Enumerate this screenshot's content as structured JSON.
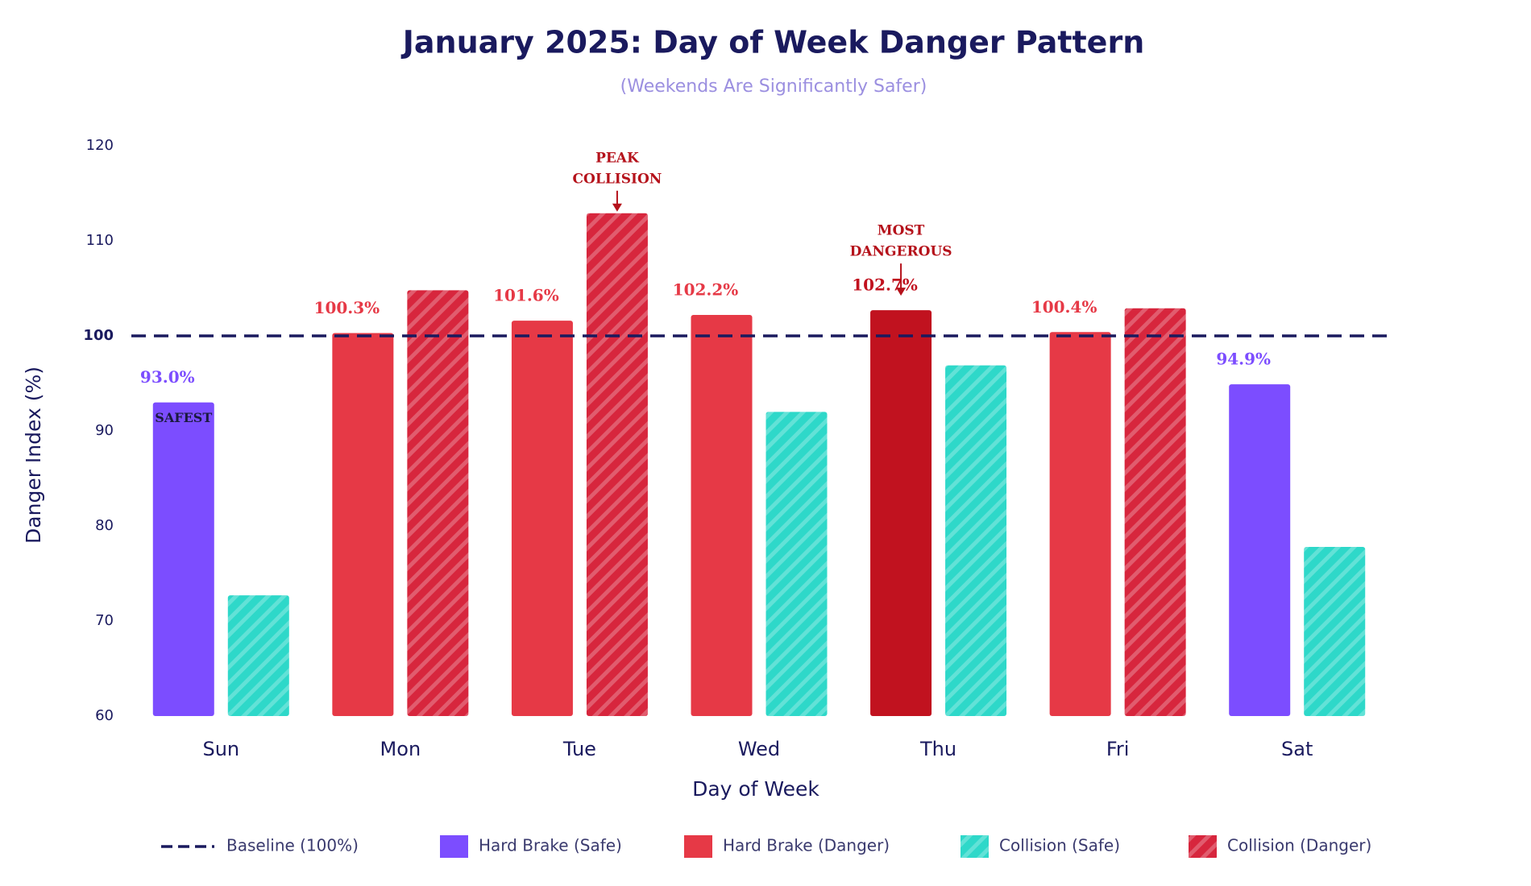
{
  "chart_data": {
    "type": "bar",
    "title": "January 2025: Day of Week Danger Pattern",
    "subtitle": "(Weekends Are Significantly Safer)",
    "x_label": "Day of Week",
    "y_label": "Danger Index (%)",
    "categories": [
      "Sun",
      "Mon",
      "Tue",
      "Wed",
      "Thu",
      "Fri",
      "Sat"
    ],
    "ylim": [
      60,
      120
    ],
    "yticks": [
      60,
      70,
      80,
      90,
      100,
      110,
      120
    ],
    "baseline": 100,
    "baseline_color": "#1a1a5e",
    "series": [
      {
        "values": [
          93.0,
          100.3,
          101.6,
          102.2,
          102.7,
          100.4,
          94.9
        ],
        "value_labels": [
          "93.0%",
          "100.3%",
          "101.6%",
          "102.2%",
          "102.7%",
          "100.4%",
          "94.9%"
        ],
        "colors": [
          "#7c4dff",
          "#e63946",
          "#e63946",
          "#e63946",
          "#c1121f",
          "#e63946",
          "#7c4dff"
        ],
        "hatched": false,
        "inner_labels": [
          "SAFEST",
          null,
          null,
          null,
          null,
          null,
          null
        ],
        "annotations": [
          null,
          null,
          null,
          null,
          [
            "MOST",
            "DANGEROUS"
          ],
          null,
          null
        ]
      },
      {
        "values": [
          72.7,
          104.8,
          112.9,
          92.0,
          96.9,
          102.9,
          77.8
        ],
        "colors": [
          "#2ed8c9",
          "#d7263d",
          "#d7263d",
          "#2ed8c9",
          "#2ed8c9",
          "#d7263d",
          "#2ed8c9"
        ],
        "hatched": true,
        "annotations": [
          null,
          null,
          [
            "PEAK",
            "COLLISION"
          ],
          null,
          null,
          null,
          null
        ]
      }
    ],
    "legend": [
      {
        "name": "Baseline (100%)",
        "color": "#1a1a5e",
        "style": "dashed"
      },
      {
        "name": "Hard Brake (Safe)",
        "color": "#7c4dff",
        "style": "solid"
      },
      {
        "name": "Hard Brake (Danger)",
        "color": "#e63946",
        "style": "solid"
      },
      {
        "name": "Collision (Safe)",
        "color": "#2ed8c9",
        "style": "hatched"
      },
      {
        "name": "Collision (Danger)",
        "color": "#d7263d",
        "style": "hatched"
      }
    ]
  }
}
